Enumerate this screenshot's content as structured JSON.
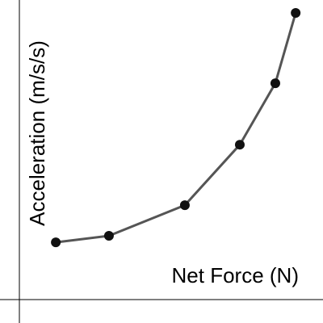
{
  "chart_data": {
    "type": "line",
    "x_label": "Net Force (N)",
    "y_label": "Acceleration (m/s/s)",
    "x": [
      1.2,
      2.95,
      5.45,
      7.26,
      8.43,
      9.1
    ],
    "series": [
      {
        "color": "#555555",
        "values": [
          1.91,
          2.13,
          3.15,
          5.17,
          7.22,
          9.57
        ]
      }
    ],
    "xlim": [
      0,
      10
    ],
    "ylim": [
      0,
      10
    ]
  }
}
